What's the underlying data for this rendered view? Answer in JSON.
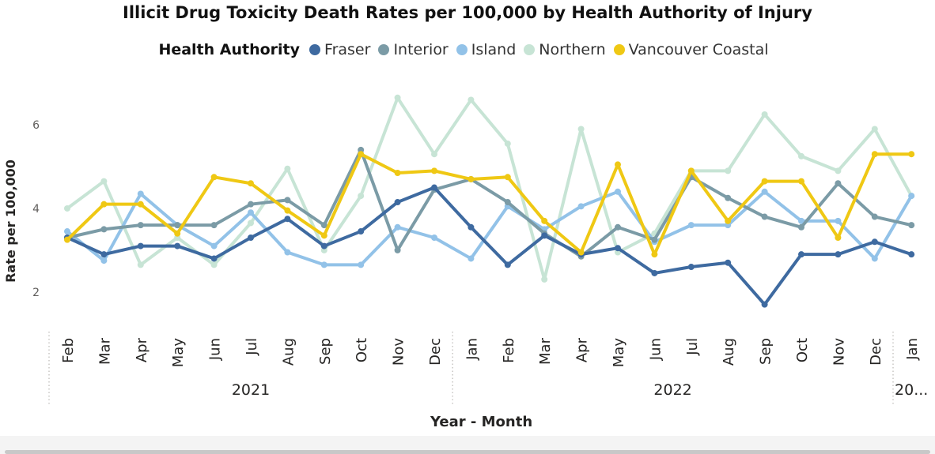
{
  "chart_data": {
    "type": "line",
    "title": "Illicit Drug Toxicity Death Rates per 100,000 by Health Authority of Injury",
    "legend_title": "Health Authority",
    "legend_position": "top-center",
    "ylabel": "Rate per 100,000",
    "xlabel": "Year - Month",
    "ylim": [
      1.05,
      7.1
    ],
    "yticks": [
      2,
      4,
      6
    ],
    "grid": false,
    "categories": [
      "Feb",
      "Mar",
      "Apr",
      "May",
      "Jun",
      "Jul",
      "Aug",
      "Sep",
      "Oct",
      "Nov",
      "Dec",
      "Jan",
      "Feb",
      "Mar",
      "Apr",
      "May",
      "Jun",
      "Jul",
      "Aug",
      "Sep",
      "Oct",
      "Nov",
      "Dec",
      "Jan"
    ],
    "year_groups": [
      {
        "label": "2021",
        "start": 0,
        "end": 10
      },
      {
        "label": "2022",
        "start": 11,
        "end": 22
      },
      {
        "label": "20...",
        "start": 23,
        "end": 23
      }
    ],
    "series": [
      {
        "name": "Fraser",
        "color": "#3e6aa0",
        "values": [
          3.3,
          2.9,
          3.1,
          3.1,
          2.8,
          3.3,
          3.75,
          3.1,
          3.45,
          4.15,
          4.5,
          3.55,
          2.65,
          3.35,
          2.9,
          3.05,
          2.45,
          2.6,
          2.7,
          1.7,
          2.9,
          2.9,
          3.2,
          2.9
        ]
      },
      {
        "name": "Interior",
        "color": "#7b9ba6",
        "values": [
          3.3,
          3.5,
          3.6,
          3.6,
          3.6,
          4.1,
          4.2,
          3.6,
          5.4,
          3.0,
          4.45,
          4.7,
          4.15,
          3.4,
          2.85,
          3.55,
          3.25,
          4.75,
          4.25,
          3.8,
          3.55,
          4.6,
          3.8,
          3.6
        ]
      },
      {
        "name": "Island",
        "color": "#92c2e8",
        "values": [
          3.45,
          2.75,
          4.35,
          3.6,
          3.1,
          3.9,
          2.95,
          2.65,
          2.65,
          3.55,
          3.3,
          2.8,
          4.05,
          3.5,
          4.05,
          4.4,
          3.2,
          3.6,
          3.6,
          4.4,
          3.7,
          3.7,
          2.8,
          4.3
        ]
      },
      {
        "name": "Northern",
        "color": "#c7e4d5",
        "values": [
          4.0,
          4.65,
          2.65,
          3.3,
          2.65,
          3.65,
          4.95,
          3.0,
          4.3,
          6.65,
          5.3,
          6.6,
          5.55,
          2.3,
          5.9,
          2.95,
          3.4,
          4.9,
          4.9,
          6.25,
          5.25,
          4.9,
          5.9,
          4.3
        ]
      },
      {
        "name": "Vancouver Coastal",
        "color": "#efc814",
        "values": [
          3.25,
          4.1,
          4.1,
          3.4,
          4.75,
          4.6,
          3.95,
          3.35,
          5.3,
          4.85,
          4.9,
          4.7,
          4.75,
          3.7,
          2.95,
          5.05,
          2.9,
          4.9,
          3.7,
          4.65,
          4.65,
          3.3,
          5.3,
          5.3
        ]
      }
    ]
  }
}
